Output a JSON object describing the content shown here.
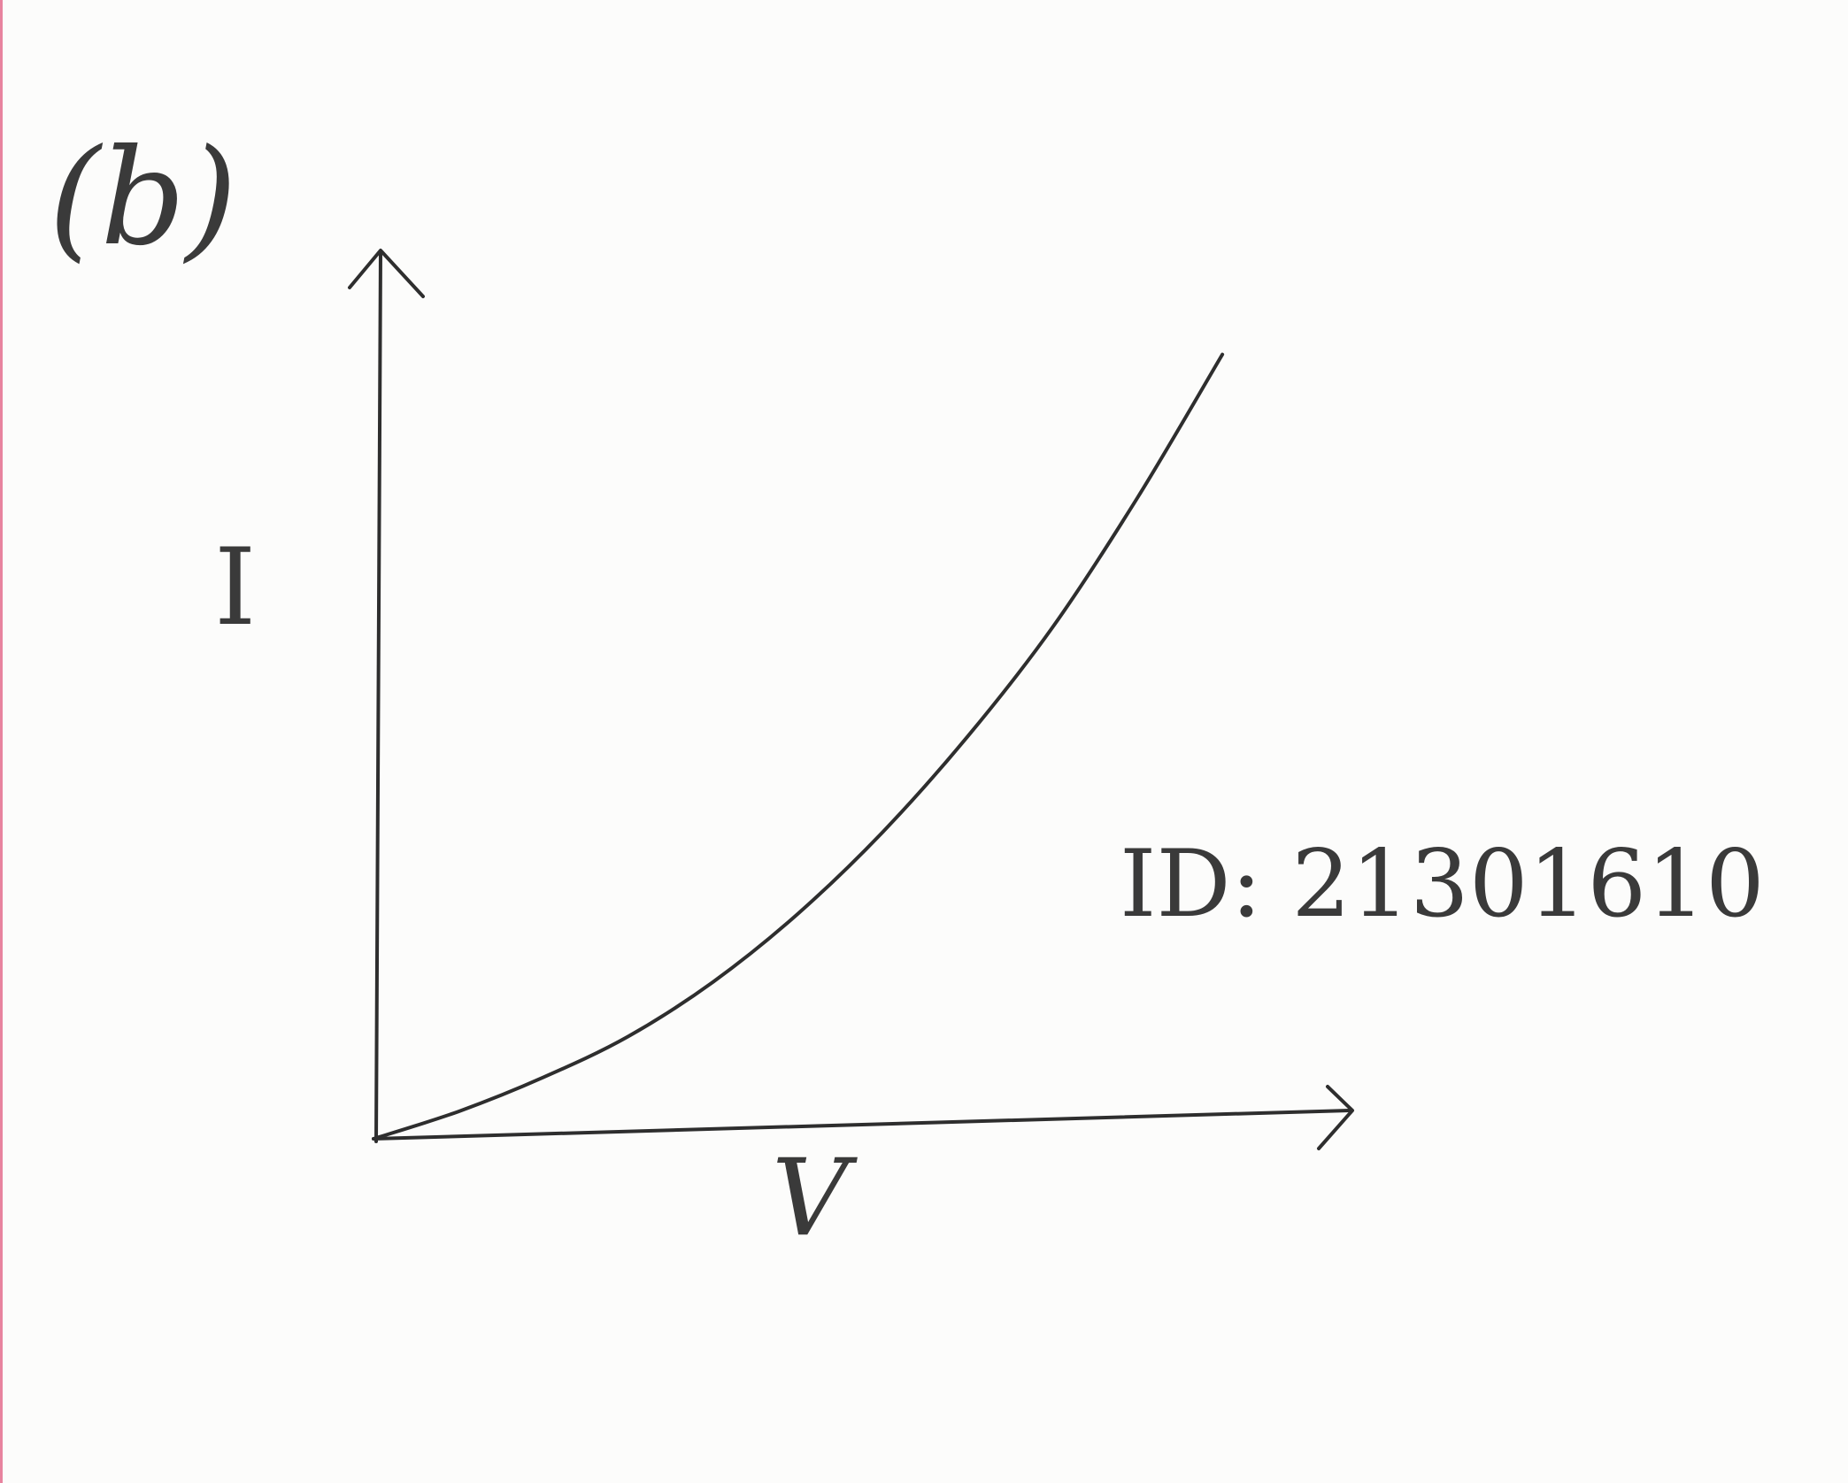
{
  "chart_data": {
    "type": "line",
    "panel_label": "(b)",
    "ylabel": "I",
    "xlabel": "V",
    "annotation": "ID: 21301610",
    "title": "",
    "grid": false,
    "legend": "none",
    "series": [
      {
        "x": [
          0,
          0.1,
          0.2,
          0.3,
          0.4,
          0.5,
          0.6,
          0.7,
          0.8,
          0.9,
          1.0
        ],
        "y": [
          0,
          0.04,
          0.09,
          0.15,
          0.23,
          0.33,
          0.45,
          0.59,
          0.75,
          0.94,
          1.15
        ]
      }
    ],
    "xlim": [
      0,
      1.15
    ],
    "ylim": [
      0,
      1.3
    ]
  },
  "colors": {
    "ink": "#2e2e2e",
    "paper": "#fcfcfb",
    "edge": "#e05078"
  }
}
